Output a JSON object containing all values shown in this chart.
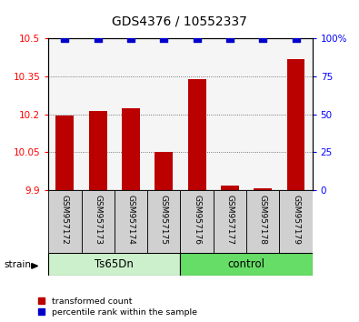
{
  "title": "GDS4376 / 10552337",
  "samples": [
    "GSM957172",
    "GSM957173",
    "GSM957174",
    "GSM957175",
    "GSM957176",
    "GSM957177",
    "GSM957178",
    "GSM957179"
  ],
  "red_values": [
    10.195,
    10.215,
    10.225,
    10.052,
    10.34,
    9.917,
    9.907,
    10.42
  ],
  "blue_values": [
    100,
    100,
    100,
    100,
    100,
    100,
    100,
    100
  ],
  "groups": [
    {
      "label": "Ts65Dn",
      "start": 0,
      "end": 4,
      "color": "#ccf0cc"
    },
    {
      "label": "control",
      "start": 4,
      "end": 8,
      "color": "#66dd66"
    }
  ],
  "strain_label": "strain",
  "ylim_left": [
    9.9,
    10.5
  ],
  "ylim_right": [
    0,
    100
  ],
  "yticks_left": [
    9.9,
    10.05,
    10.2,
    10.35,
    10.5
  ],
  "yticks_right": [
    0,
    25,
    50,
    75,
    100
  ],
  "ytick_labels_left": [
    "9.9",
    "10.05",
    "10.2",
    "10.35",
    "10.5"
  ],
  "ytick_labels_right": [
    "0",
    "25",
    "50",
    "75",
    "100%"
  ],
  "bar_color": "#bb0000",
  "dot_color": "#0000cc",
  "bar_width": 0.55,
  "dot_size": 28,
  "bg_color": "#f5f5f5",
  "legend_red": "transformed count",
  "legend_blue": "percentile rank within the sample",
  "grid_color": "#555555",
  "sample_box_color": "#d0d0d0",
  "title_fontsize": 10,
  "tick_fontsize": 7.5,
  "label_fontsize": 7,
  "sample_fontsize": 6.5
}
